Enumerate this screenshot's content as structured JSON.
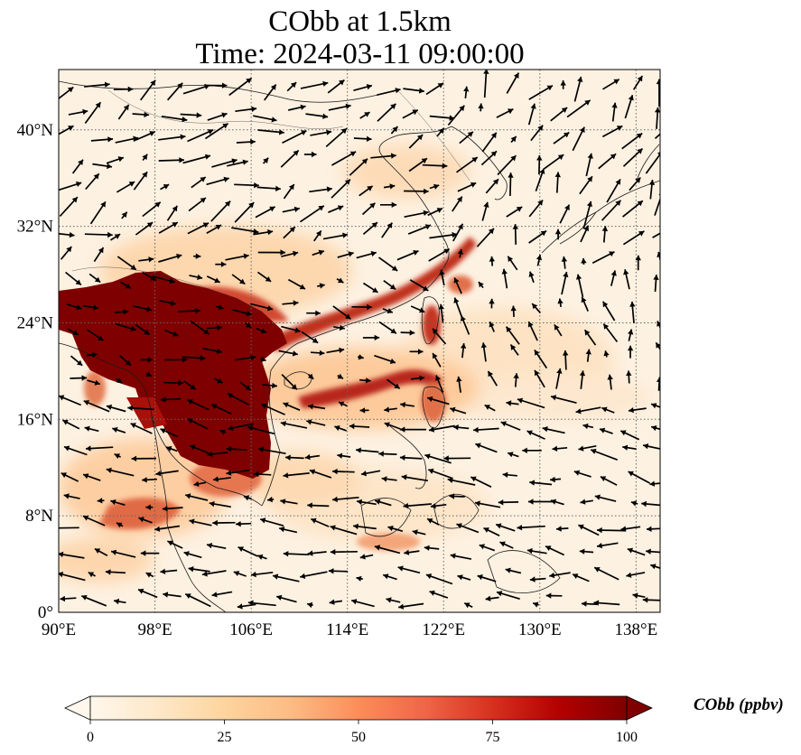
{
  "title": {
    "line1": "CObb at 1.5km",
    "line2": "Time: 2024-03-11 09:00:00"
  },
  "map": {
    "lat_labels": [
      "40°N",
      "32°N",
      "24°N",
      "16°N",
      "8°N",
      "0°"
    ],
    "lon_labels": [
      "90°E",
      "98°E",
      "106°E",
      "114°E",
      "122°E",
      "130°E",
      "138°E"
    ],
    "lat_values": [
      40,
      32,
      24,
      16,
      8,
      0
    ],
    "lon_values": [
      90,
      98,
      106,
      114,
      122,
      130,
      138
    ],
    "lat_range": [
      0,
      45
    ],
    "lon_range": [
      90,
      140
    ],
    "gridlines": true,
    "field": "CObb",
    "vectors": "wind arrows"
  },
  "colorbar": {
    "label": "CObb (ppbv)",
    "ticks": [
      "0",
      "25",
      "50",
      "75",
      "100"
    ],
    "tick_values": [
      0,
      25,
      50,
      75,
      100
    ],
    "range": [
      0,
      100
    ],
    "extend": "both",
    "colormap": "OrRd",
    "colors": [
      "#fff7ec",
      "#fee8c8",
      "#fdd49e",
      "#fdbb84",
      "#fc8d59",
      "#ef6548",
      "#d7301f",
      "#b30000",
      "#7f0000"
    ]
  }
}
